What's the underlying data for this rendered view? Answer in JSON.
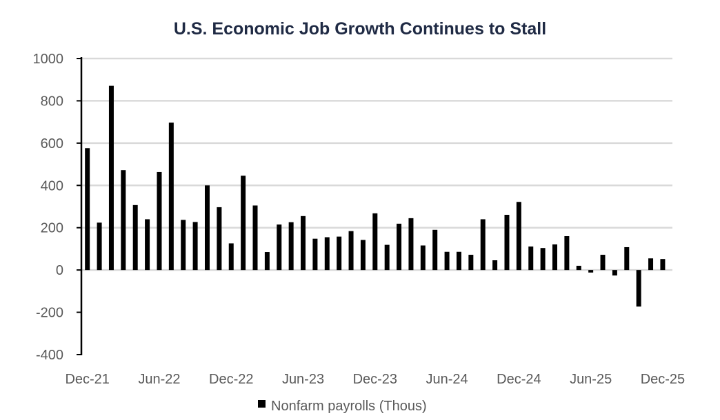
{
  "chart_data": {
    "type": "bar",
    "title": "U.S. Economic Job Growth Continues to Stall",
    "xlabel": "",
    "ylabel": "",
    "ylim": [
      -400,
      1000
    ],
    "yticks": [
      "-400",
      "-200",
      "0",
      "200",
      "400",
      "600",
      "800",
      "1000"
    ],
    "ytick_values": [
      -400,
      -200,
      0,
      200,
      400,
      600,
      800,
      1000
    ],
    "xtick_labels": [
      "Dec-21",
      "Jun-22",
      "Dec-22",
      "Jun-23",
      "Dec-23",
      "Jun-24",
      "Dec-24",
      "Jun-25",
      "Dec-25"
    ],
    "xtick_indices": [
      0,
      6,
      12,
      18,
      24,
      30,
      36,
      42,
      48
    ],
    "grid": true,
    "legend_position": "bottom",
    "bar_color": "#000000",
    "categories": [
      "Dec-21",
      "Jan-22",
      "Feb-22",
      "Mar-22",
      "Apr-22",
      "May-22",
      "Jun-22",
      "Jul-22",
      "Aug-22",
      "Sep-22",
      "Oct-22",
      "Nov-22",
      "Dec-22",
      "Jan-23",
      "Feb-23",
      "Mar-23",
      "Apr-23",
      "May-23",
      "Jun-23",
      "Jul-23",
      "Aug-23",
      "Sep-23",
      "Oct-23",
      "Nov-23",
      "Dec-23",
      "Jan-24",
      "Feb-24",
      "Mar-24",
      "Apr-24",
      "May-24",
      "Jun-24",
      "Jul-24",
      "Aug-24",
      "Sep-24",
      "Oct-24",
      "Nov-24",
      "Dec-24",
      "Jan-25",
      "Feb-25",
      "Mar-25",
      "Apr-25",
      "May-25",
      "Jun-25",
      "Jul-25",
      "Aug-25",
      "Sep-25",
      "Oct-25",
      "Nov-25",
      "Dec-25"
    ],
    "series": [
      {
        "name": "Nonfarm payrolls (Thous)",
        "values": [
          576,
          224,
          871,
          472,
          307,
          240,
          463,
          697,
          237,
          227,
          400,
          297,
          126,
          446,
          305,
          85,
          215,
          226,
          255,
          148,
          155,
          158,
          184,
          142,
          268,
          119,
          219,
          245,
          116,
          190,
          86,
          86,
          72,
          240,
          46,
          261,
          322,
          111,
          104,
          121,
          160,
          20,
          -12,
          72,
          -26,
          108,
          -173,
          55,
          52
        ]
      }
    ]
  }
}
